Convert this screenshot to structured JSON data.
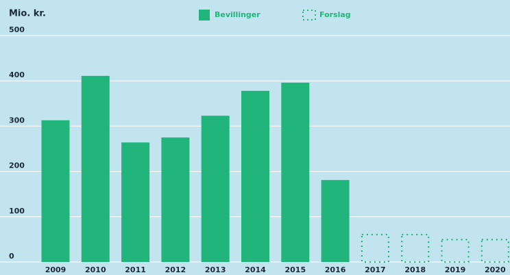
{
  "chart_data": {
    "type": "bar",
    "ylabel": "Mio. kr.",
    "categories": [
      "2009",
      "2010",
      "2011",
      "2012",
      "2013",
      "2014",
      "2015",
      "2016",
      "2017",
      "2018",
      "2019",
      "2020"
    ],
    "series": [
      {
        "name": "Bevillinger",
        "color": "#21b57c",
        "style": "solid",
        "values": [
          313,
          411,
          264,
          275,
          323,
          378,
          396,
          181,
          null,
          null,
          null,
          null
        ]
      },
      {
        "name": "Forslag",
        "color": "#21b57c",
        "style": "dotted",
        "values": [
          null,
          null,
          null,
          null,
          null,
          null,
          null,
          null,
          62,
          62,
          51,
          51
        ]
      }
    ],
    "ylim": [
      0,
      500
    ],
    "yticks": [
      0,
      100,
      200,
      300,
      400,
      500
    ],
    "grid": true,
    "legend": "top"
  }
}
